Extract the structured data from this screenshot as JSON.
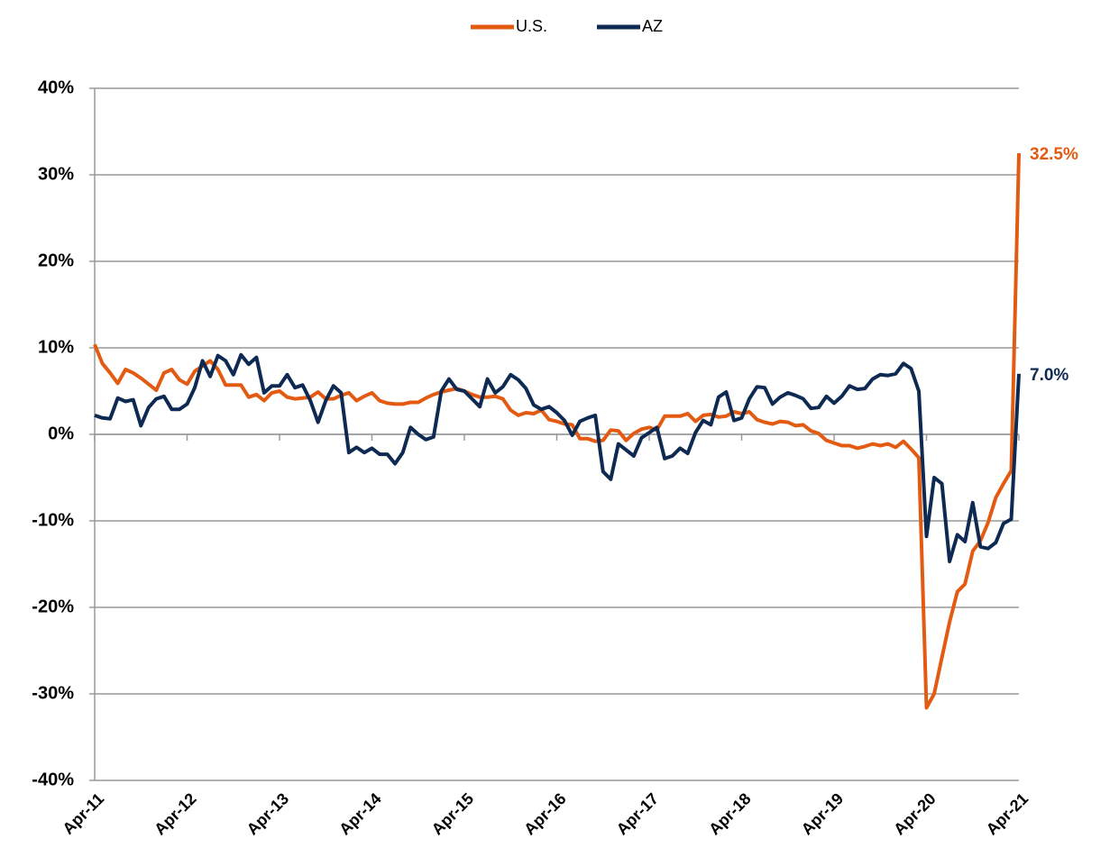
{
  "chart_data": {
    "type": "line",
    "categories": [
      "Apr-11",
      null,
      null,
      null,
      null,
      null,
      null,
      null,
      null,
      null,
      null,
      null,
      "Apr-12",
      null,
      null,
      null,
      null,
      null,
      null,
      null,
      null,
      null,
      null,
      null,
      "Apr-13",
      null,
      null,
      null,
      null,
      null,
      null,
      null,
      null,
      null,
      null,
      null,
      "Apr-14",
      null,
      null,
      null,
      null,
      null,
      null,
      null,
      null,
      null,
      null,
      null,
      "Apr-15",
      null,
      null,
      null,
      null,
      null,
      null,
      null,
      null,
      null,
      null,
      null,
      "Apr-16",
      null,
      null,
      null,
      null,
      null,
      null,
      null,
      null,
      null,
      null,
      null,
      "Apr-17",
      null,
      null,
      null,
      null,
      null,
      null,
      null,
      null,
      null,
      null,
      null,
      "Apr-18",
      null,
      null,
      null,
      null,
      null,
      null,
      null,
      null,
      null,
      null,
      null,
      "Apr-19",
      null,
      null,
      null,
      null,
      null,
      null,
      null,
      null,
      null,
      null,
      null,
      "Apr-20",
      null,
      null,
      null,
      null,
      null,
      null,
      null,
      null,
      null,
      null,
      null,
      "Apr-21"
    ],
    "series": [
      {
        "name": "U.S.",
        "color": "#e35b12",
        "values": [
          10.4,
          8.2,
          7.1,
          5.9,
          7.5,
          7.1,
          6.5,
          5.8,
          5.1,
          7.1,
          7.5,
          6.3,
          5.8,
          7.3,
          7.9,
          8.5,
          7.5,
          5.7,
          5.7,
          5.7,
          4.3,
          4.6,
          3.9,
          4.8,
          5.0,
          4.3,
          4.1,
          4.2,
          4.3,
          4.9,
          4.1,
          4.1,
          4.5,
          4.8,
          3.9,
          4.4,
          4.8,
          3.9,
          3.6,
          3.5,
          3.5,
          3.7,
          3.7,
          4.2,
          4.6,
          4.9,
          5.1,
          5.3,
          5.0,
          4.6,
          4.3,
          4.3,
          4.4,
          4.1,
          2.8,
          2.2,
          2.5,
          2.4,
          2.8,
          1.7,
          1.5,
          1.2,
          1.1,
          -0.5,
          -0.5,
          -0.8,
          -0.7,
          0.5,
          0.4,
          -0.7,
          0.1,
          0.6,
          0.8,
          0.5,
          2.1,
          2.1,
          2.1,
          2.4,
          1.5,
          2.2,
          2.3,
          2.0,
          2.1,
          2.6,
          2.4,
          2.6,
          1.7,
          1.4,
          1.2,
          1.5,
          1.4,
          1.0,
          1.1,
          0.4,
          0.1,
          -0.7,
          -1.0,
          -1.3,
          -1.3,
          -1.6,
          -1.4,
          -1.1,
          -1.3,
          -1.1,
          -1.5,
          -0.8,
          -1.7,
          -2.7,
          -31.6,
          -30.0,
          -25.8,
          -21.7,
          -18.2,
          -17.3,
          -13.5,
          -12.3,
          -10.2,
          -7.3,
          -5.7,
          -4.2,
          32.5
        ],
        "value_labels": [
          null,
          null,
          null,
          null,
          null,
          null,
          null,
          null,
          null,
          null,
          null,
          null,
          null,
          null,
          null,
          null,
          null,
          null,
          null,
          null,
          null,
          null,
          null,
          null,
          null,
          null,
          null,
          null,
          null,
          null,
          null,
          null,
          null,
          null,
          null,
          null,
          null,
          null,
          null,
          null,
          null,
          null,
          null,
          null,
          null,
          null,
          null,
          null,
          null,
          null,
          null,
          null,
          null,
          null,
          null,
          null,
          null,
          null,
          null,
          null,
          null,
          null,
          null,
          null,
          null,
          null,
          null,
          null,
          null,
          null,
          null,
          null,
          null,
          null,
          null,
          null,
          null,
          null,
          null,
          null,
          null,
          null,
          null,
          null,
          null,
          null,
          null,
          null,
          null,
          null,
          null,
          null,
          null,
          null,
          null,
          null,
          null,
          null,
          null,
          null,
          null,
          null,
          null,
          null,
          null,
          null,
          null,
          null,
          null,
          null,
          null,
          null,
          null,
          null,
          null,
          null,
          null,
          null,
          null,
          null,
          "32.5%"
        ]
      },
      {
        "name": "AZ",
        "color": "#0e2a52",
        "values": [
          2.2,
          1.9,
          1.8,
          4.2,
          3.8,
          4.0,
          1.0,
          3.1,
          4.1,
          4.4,
          2.9,
          2.9,
          3.5,
          5.4,
          8.5,
          6.7,
          9.1,
          8.5,
          6.9,
          9.2,
          8.1,
          8.9,
          4.8,
          5.6,
          5.6,
          6.9,
          5.4,
          5.7,
          3.9,
          1.4,
          3.9,
          5.6,
          4.8,
          -2.1,
          -1.5,
          -2.1,
          -1.6,
          -2.3,
          -2.3,
          -3.4,
          -2.1,
          0.8,
          0.0,
          -0.6,
          -0.3,
          5.0,
          6.4,
          5.2,
          5.0,
          4.1,
          3.2,
          6.4,
          4.8,
          5.5,
          6.9,
          6.3,
          5.3,
          3.4,
          2.9,
          3.2,
          2.5,
          1.6,
          -0.1,
          1.5,
          1.9,
          2.2,
          -4.3,
          -5.2,
          -1.1,
          -1.8,
          -2.5,
          -0.4,
          0.2,
          0.8,
          -2.8,
          -2.5,
          -1.6,
          -2.2,
          0.2,
          1.6,
          1.1,
          4.3,
          4.9,
          1.6,
          1.9,
          4.1,
          5.5,
          5.4,
          3.5,
          4.3,
          4.8,
          4.5,
          4.1,
          3.0,
          3.1,
          4.4,
          3.6,
          4.4,
          5.6,
          5.2,
          5.3,
          6.4,
          6.9,
          6.8,
          7.0,
          8.2,
          7.6,
          5.0,
          -11.8,
          -5.0,
          -5.7,
          -14.7,
          -11.6,
          -12.4,
          -7.9,
          -13.0,
          -13.2,
          -12.5,
          -10.3,
          -9.8,
          7.0
        ],
        "value_labels": [
          null,
          null,
          null,
          null,
          null,
          null,
          null,
          null,
          null,
          null,
          null,
          null,
          null,
          null,
          null,
          null,
          null,
          null,
          null,
          null,
          null,
          null,
          null,
          null,
          null,
          null,
          null,
          null,
          null,
          null,
          null,
          null,
          null,
          null,
          null,
          null,
          null,
          null,
          null,
          null,
          null,
          null,
          null,
          null,
          null,
          null,
          null,
          null,
          null,
          null,
          null,
          null,
          null,
          null,
          null,
          null,
          null,
          null,
          null,
          null,
          null,
          null,
          null,
          null,
          null,
          null,
          null,
          null,
          null,
          null,
          null,
          null,
          null,
          null,
          null,
          null,
          null,
          null,
          null,
          null,
          null,
          null,
          null,
          null,
          null,
          null,
          null,
          null,
          null,
          null,
          null,
          null,
          null,
          null,
          null,
          null,
          null,
          null,
          null,
          null,
          null,
          null,
          null,
          null,
          null,
          null,
          null,
          null,
          null,
          null,
          null,
          null,
          null,
          null,
          null,
          null,
          null,
          null,
          null,
          null,
          "7.0%"
        ]
      }
    ],
    "ylim": [
      -40,
      40
    ],
    "yticks": [
      {
        "value": -40,
        "label": "-40%"
      },
      {
        "value": -30,
        "label": "-30%"
      },
      {
        "value": -20,
        "label": "-20%"
      },
      {
        "value": -10,
        "label": "-10%"
      },
      {
        "value": 0,
        "label": "0%"
      },
      {
        "value": 10,
        "label": "10%"
      },
      {
        "value": 20,
        "label": "20%"
      },
      {
        "value": 30,
        "label": "30%"
      },
      {
        "value": 40,
        "label": "40%"
      }
    ],
    "grid": true,
    "legend": "top"
  }
}
